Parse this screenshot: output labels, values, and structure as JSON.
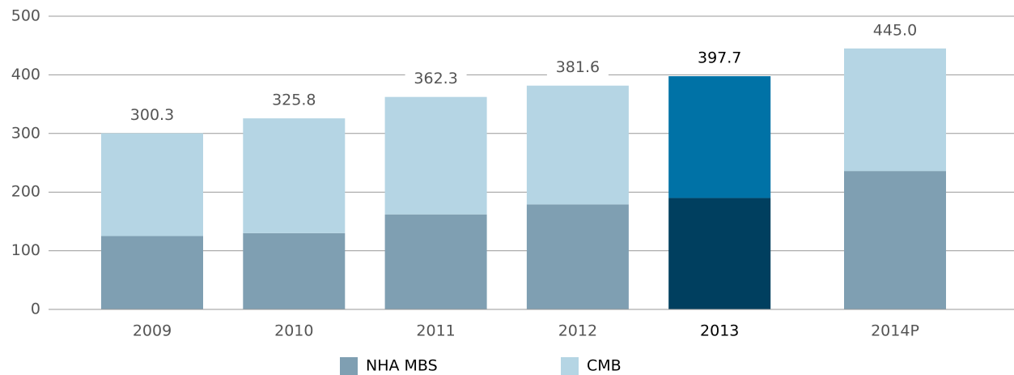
{
  "chart_data": {
    "type": "stacked_bar",
    "categories": [
      "2009",
      "2010",
      "2011",
      "2012",
      "2013",
      "2014P"
    ],
    "series": [
      {
        "name": "NHA MBS",
        "color": "#7f9fb2",
        "highlight_color": "#003f5f",
        "values": [
          125,
          130,
          162,
          179,
          190,
          236
        ]
      },
      {
        "name": "CMB",
        "color": "#b5d5e4",
        "highlight_color": "#0072a6",
        "values": [
          175.3,
          195.8,
          200.3,
          202.6,
          207.7,
          209
        ]
      }
    ],
    "totals": [
      300.3,
      325.8,
      362.3,
      381.6,
      397.7,
      445
    ],
    "value_labels": [
      "300.3",
      "325.8",
      "362.3",
      "381.6",
      "397.7",
      "445.0"
    ],
    "highlight_index": 4,
    "ylim": [
      0,
      500
    ],
    "yticks": [
      0,
      100,
      200,
      300,
      400,
      500
    ],
    "grid": true,
    "legend": "bottom"
  }
}
